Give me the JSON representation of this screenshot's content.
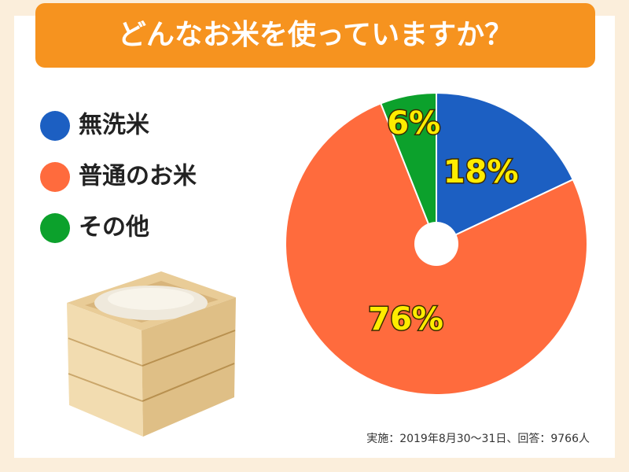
{
  "chart_data": {
    "type": "pie",
    "title": "どんなお米を使っていますか？",
    "categories": [
      "無洗米",
      "普通のお米",
      "その他"
    ],
    "values": [
      18,
      76,
      6
    ],
    "value_labels": [
      "18%",
      "76%",
      "6%"
    ],
    "colors": [
      "#1c5fc2",
      "#ff6b3d",
      "#0ca12c"
    ],
    "note": "実施：2019年8月30～31日、回答：9766人"
  }
}
